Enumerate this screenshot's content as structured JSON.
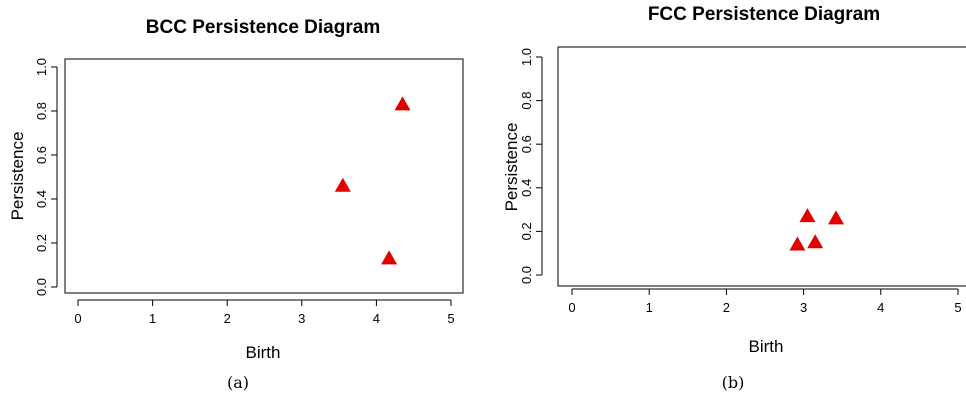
{
  "chart_data": [
    {
      "type": "scatter",
      "title": "BCC Persistence Diagram",
      "xlabel": "Birth",
      "ylabel": "Persistence",
      "xlim": [
        0,
        5
      ],
      "ylim": [
        0,
        1.0
      ],
      "x_ticks": [
        "0",
        "1",
        "2",
        "3",
        "4",
        "5"
      ],
      "y_ticks": [
        "0.0",
        "0.2",
        "0.4",
        "0.6",
        "0.8",
        "1.0"
      ],
      "marker": "filled-triangle",
      "marker_color": "#e00000",
      "points": [
        {
          "x": 3.55,
          "y": 0.46
        },
        {
          "x": 4.35,
          "y": 0.83
        },
        {
          "x": 4.17,
          "y": 0.13
        }
      ],
      "caption": "(a)"
    },
    {
      "type": "scatter",
      "title": "FCC Persistence Diagram",
      "xlabel": "Birth",
      "ylabel": "Persistence",
      "xlim": [
        0,
        5
      ],
      "ylim": [
        0,
        1.0
      ],
      "x_ticks": [
        "0",
        "1",
        "2",
        "3",
        "4",
        "5"
      ],
      "y_ticks": [
        "0.0",
        "0.2",
        "0.4",
        "0.6",
        "0.8",
        "1.0"
      ],
      "marker": "filled-triangle",
      "marker_color": "#e00000",
      "points": [
        {
          "x": 2.92,
          "y": 0.14
        },
        {
          "x": 3.05,
          "y": 0.27
        },
        {
          "x": 3.15,
          "y": 0.15
        },
        {
          "x": 3.42,
          "y": 0.26
        }
      ],
      "caption": "(b)"
    }
  ]
}
